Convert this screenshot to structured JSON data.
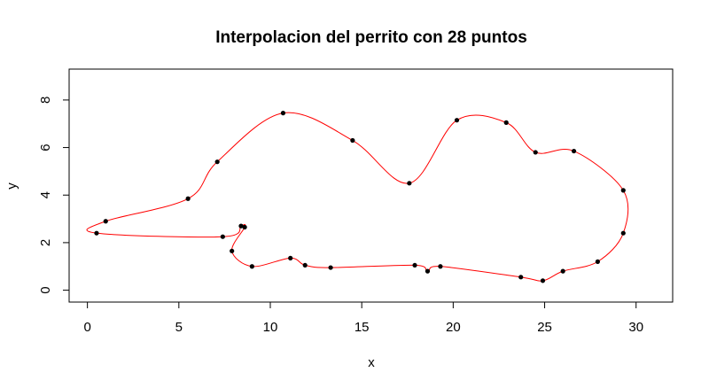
{
  "chart_data": {
    "type": "scatter",
    "title": "Interpolacion del perrito con 28 puntos",
    "xlabel": "x",
    "ylabel": "y",
    "xlim": [
      -1,
      32
    ],
    "ylim": [
      -0.5,
      9.3
    ],
    "x_ticks": [
      0,
      5,
      10,
      15,
      20,
      25,
      30
    ],
    "y_ticks": [
      0,
      2,
      4,
      6,
      8
    ],
    "x_tick_labels": [
      "0",
      "5",
      "10",
      "15",
      "20",
      "25",
      "30"
    ],
    "y_tick_labels": [
      "0",
      "2",
      "4",
      "6",
      "8"
    ],
    "grid": false,
    "legend": "none",
    "colors": {
      "points": "#000000",
      "curve": "#ff0000",
      "frame": "#000000"
    },
    "series": [
      {
        "points": [
          {
            "x": 0.5,
            "y": 2.4
          },
          {
            "x": 1.0,
            "y": 2.9
          },
          {
            "x": 5.5,
            "y": 3.85
          },
          {
            "x": 7.1,
            "y": 5.4
          },
          {
            "x": 10.7,
            "y": 7.45
          },
          {
            "x": 14.5,
            "y": 6.3
          },
          {
            "x": 17.6,
            "y": 4.5
          },
          {
            "x": 20.2,
            "y": 7.15
          },
          {
            "x": 22.9,
            "y": 7.05
          },
          {
            "x": 24.5,
            "y": 5.8
          },
          {
            "x": 26.6,
            "y": 5.85
          },
          {
            "x": 29.3,
            "y": 4.2
          },
          {
            "x": 29.3,
            "y": 2.4
          },
          {
            "x": 27.9,
            "y": 1.2
          },
          {
            "x": 26.0,
            "y": 0.8
          },
          {
            "x": 24.9,
            "y": 0.4
          },
          {
            "x": 23.7,
            "y": 0.55
          },
          {
            "x": 19.3,
            "y": 1.0
          },
          {
            "x": 18.6,
            "y": 0.8
          },
          {
            "x": 17.9,
            "y": 1.05
          },
          {
            "x": 13.3,
            "y": 0.95
          },
          {
            "x": 11.9,
            "y": 1.05
          },
          {
            "x": 11.1,
            "y": 1.35
          },
          {
            "x": 9.0,
            "y": 1.0
          },
          {
            "x": 7.9,
            "y": 1.65
          },
          {
            "x": 8.6,
            "y": 2.65
          },
          {
            "x": 8.4,
            "y": 2.7
          },
          {
            "x": 7.4,
            "y": 2.25
          }
        ]
      }
    ]
  }
}
